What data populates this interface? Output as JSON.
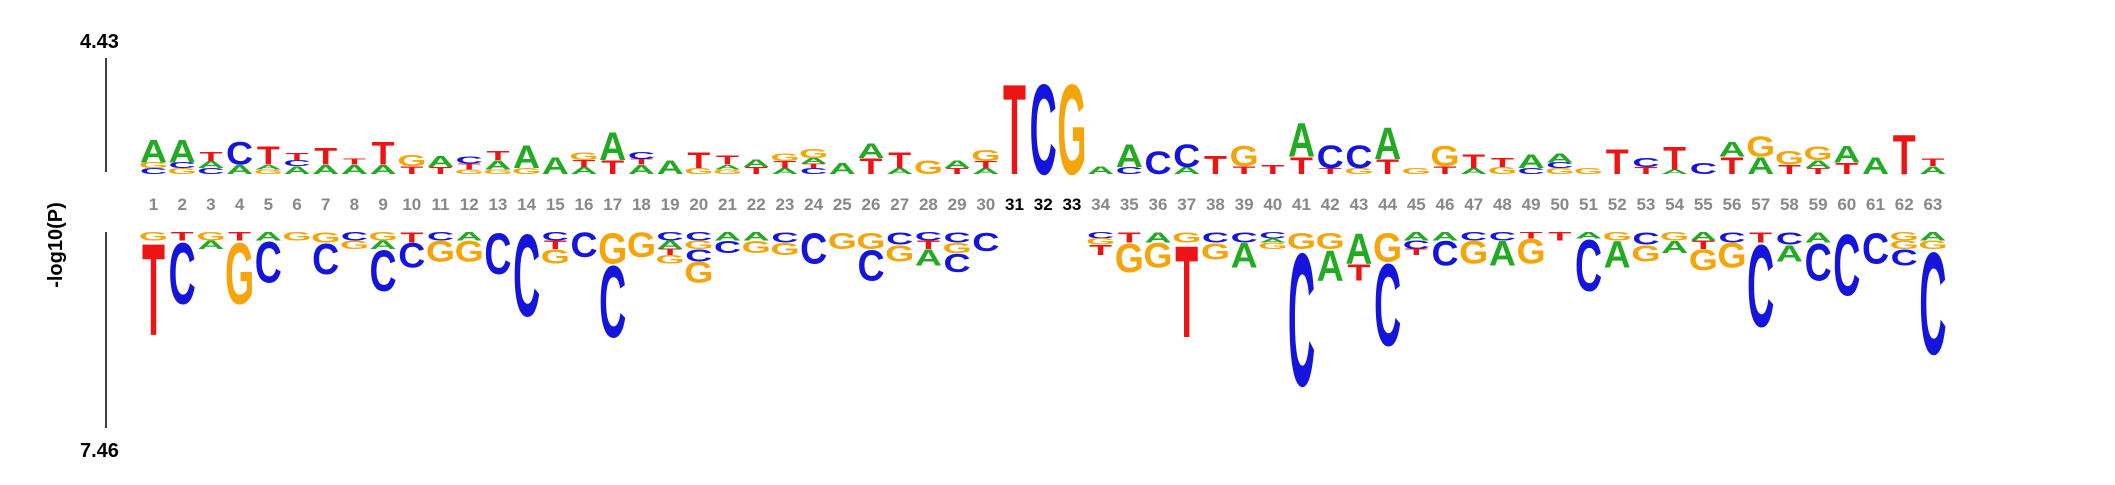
{
  "labels": {
    "top_value": "4.43",
    "bottom_value": "7.46",
    "y_axis_title": "-log10(P)"
  },
  "colors": {
    "A": "#22aa22",
    "C": "#1414dc",
    "G": "#f5a50a",
    "T": "#ee1414",
    "position_default": "#888888",
    "position_highlight": "#000000"
  },
  "positions": [
    "1",
    "2",
    "3",
    "4",
    "5",
    "6",
    "7",
    "8",
    "9",
    "10",
    "11",
    "12",
    "13",
    "14",
    "15",
    "16",
    "17",
    "18",
    "19",
    "20",
    "21",
    "22",
    "23",
    "24",
    "25",
    "26",
    "27",
    "28",
    "29",
    "30",
    "31",
    "32",
    "33",
    "34",
    "35",
    "36",
    "37",
    "38",
    "39",
    "40",
    "41",
    "42",
    "43",
    "44",
    "45",
    "46",
    "47",
    "48",
    "49",
    "50",
    "51",
    "52",
    "53",
    "54",
    "55",
    "56",
    "57",
    "58",
    "59",
    "60",
    "61",
    "62",
    "63"
  ],
  "highlighted_positions": [
    "31",
    "32",
    "33"
  ],
  "chart_data": {
    "type": "sequence-logo",
    "top_max": 4.43,
    "bottom_max": 7.46,
    "ylabel": "-log10(P)",
    "top": [
      [
        [
          "C",
          0.05
        ],
        [
          "G",
          0.05
        ],
        [
          "A",
          0.2
        ]
      ],
      [
        [
          "G",
          0.05
        ],
        [
          "C",
          0.05
        ],
        [
          "A",
          0.2
        ]
      ],
      [
        [
          "C",
          0.05
        ],
        [
          "A",
          0.06
        ],
        [
          "T",
          0.08
        ]
      ],
      [
        [
          "A",
          0.08
        ],
        [
          "C",
          0.2
        ]
      ],
      [
        [
          "G",
          0.04
        ],
        [
          "A",
          0.04
        ],
        [
          "T",
          0.16
        ]
      ],
      [
        [
          "A",
          0.07
        ],
        [
          "C",
          0.05
        ],
        [
          "T",
          0.06
        ]
      ],
      [
        [
          "A",
          0.08
        ],
        [
          "T",
          0.15
        ]
      ],
      [
        [
          "A",
          0.08
        ],
        [
          "T",
          0.05
        ]
      ],
      [
        [
          "A",
          0.08
        ],
        [
          "T",
          0.2
        ]
      ],
      [
        [
          "T",
          0.07
        ],
        [
          "G",
          0.1
        ]
      ],
      [
        [
          "T",
          0.06
        ],
        [
          "A",
          0.1
        ]
      ],
      [
        [
          "G",
          0.04
        ],
        [
          "T",
          0.05
        ],
        [
          "C",
          0.06
        ]
      ],
      [
        [
          "G",
          0.04
        ],
        [
          "A",
          0.08
        ],
        [
          "T",
          0.08
        ]
      ],
      [
        [
          "G",
          0.05
        ],
        [
          "A",
          0.2
        ]
      ],
      [
        [
          "A",
          0.15
        ]
      ],
      [
        [
          "A",
          0.06
        ],
        [
          "T",
          0.06
        ],
        [
          "G",
          0.07
        ]
      ],
      [
        [
          "T",
          0.12
        ],
        [
          "A",
          0.25
        ]
      ],
      [
        [
          "A",
          0.08
        ],
        [
          "T",
          0.05
        ],
        [
          "C",
          0.06
        ]
      ],
      [
        [
          "A",
          0.12
        ]
      ],
      [
        [
          "G",
          0.05
        ],
        [
          "T",
          0.14
        ]
      ],
      [
        [
          "G",
          0.04
        ],
        [
          "A",
          0.04
        ],
        [
          "T",
          0.08
        ]
      ],
      [
        [
          "T",
          0.06
        ],
        [
          "A",
          0.07
        ]
      ],
      [
        [
          "A",
          0.05
        ],
        [
          "T",
          0.06
        ],
        [
          "G",
          0.07
        ]
      ],
      [
        [
          "C",
          0.05
        ],
        [
          "T",
          0.04
        ],
        [
          "A",
          0.05
        ],
        [
          "G",
          0.08
        ]
      ],
      [
        [
          "A",
          0.1
        ]
      ],
      [
        [
          "T",
          0.14
        ],
        [
          "A",
          0.13
        ]
      ],
      [
        [
          "A",
          0.05
        ],
        [
          "T",
          0.14
        ]
      ],
      [
        [
          "G",
          0.12
        ]
      ],
      [
        [
          "T",
          0.05
        ],
        [
          "A",
          0.07
        ]
      ],
      [
        [
          "A",
          0.05
        ],
        [
          "T",
          0.06
        ],
        [
          "G",
          0.1
        ]
      ],
      [
        [
          "T",
          0.8
        ]
      ],
      [
        [
          "C",
          0.8
        ]
      ],
      [
        [
          "G",
          0.8
        ]
      ],
      [
        [
          "A",
          0.07
        ]
      ],
      [
        [
          "C",
          0.06
        ],
        [
          "A",
          0.2
        ]
      ],
      [
        [
          "C",
          0.2
        ]
      ],
      [
        [
          "A",
          0.06
        ],
        [
          "C",
          0.2
        ]
      ],
      [
        [
          "T",
          0.16
        ]
      ],
      [
        [
          "T",
          0.07
        ],
        [
          "G",
          0.18
        ]
      ],
      [
        [
          "T",
          0.08
        ]
      ],
      [
        [
          "T",
          0.15
        ],
        [
          "A",
          0.3
        ]
      ],
      [
        [
          "T",
          0.05
        ],
        [
          "C",
          0.2
        ]
      ],
      [
        [
          "G",
          0.05
        ],
        [
          "C",
          0.2
        ]
      ],
      [
        [
          "T",
          0.13
        ],
        [
          "A",
          0.28
        ]
      ],
      [
        [
          "G",
          0.05
        ]
      ],
      [
        [
          "T",
          0.07
        ],
        [
          "G",
          0.18
        ]
      ],
      [
        [
          "A",
          0.05
        ],
        [
          "T",
          0.12
        ]
      ],
      [
        [
          "G",
          0.06
        ],
        [
          "T",
          0.08
        ]
      ],
      [
        [
          "C",
          0.05
        ],
        [
          "A",
          0.12
        ]
      ],
      [
        [
          "G",
          0.05
        ],
        [
          "C",
          0.05
        ],
        [
          "A",
          0.08
        ]
      ],
      [
        [
          "G",
          0.05
        ]
      ],
      [
        [
          "T",
          0.22
        ]
      ],
      [
        [
          "T",
          0.06
        ],
        [
          "C",
          0.08
        ]
      ],
      [
        [
          "A",
          0.04
        ],
        [
          "T",
          0.2
        ]
      ],
      [
        [
          "C",
          0.1
        ]
      ],
      [
        [
          "T",
          0.15
        ],
        [
          "A",
          0.13
        ]
      ],
      [
        [
          "A",
          0.15
        ],
        [
          "G",
          0.18
        ]
      ],
      [
        [
          "T",
          0.08
        ],
        [
          "G",
          0.12
        ]
      ],
      [
        [
          "T",
          0.05
        ],
        [
          "A",
          0.07
        ],
        [
          "G",
          0.12
        ]
      ],
      [
        [
          "T",
          0.1
        ],
        [
          "A",
          0.15
        ]
      ],
      [
        [
          "A",
          0.15
        ]
      ],
      [
        [
          "T",
          0.35
        ]
      ],
      [
        [
          "A",
          0.07
        ],
        [
          "T",
          0.07
        ]
      ]
    ],
    "bottom": [
      [
        [
          "G",
          0.04
        ],
        [
          "T",
          0.45
        ]
      ],
      [
        [
          "T",
          0.04
        ],
        [
          "C",
          0.3
        ]
      ],
      [
        [
          "G",
          0.04
        ],
        [
          "A",
          0.04
        ]
      ],
      [
        [
          "T",
          0.04
        ],
        [
          "G",
          0.3
        ]
      ],
      [
        [
          "A",
          0.04
        ],
        [
          "C",
          0.2
        ]
      ],
      [
        [
          "G",
          0.04
        ]
      ],
      [
        [
          "G",
          0.05
        ],
        [
          "C",
          0.15
        ]
      ],
      [
        [
          "C",
          0.04
        ],
        [
          "G",
          0.04
        ]
      ],
      [
        [
          "G",
          0.04
        ],
        [
          "A",
          0.04
        ],
        [
          "C",
          0.2
        ]
      ],
      [
        [
          "T",
          0.05
        ],
        [
          "C",
          0.12
        ]
      ],
      [
        [
          "C",
          0.04
        ],
        [
          "G",
          0.1
        ]
      ],
      [
        [
          "A",
          0.04
        ],
        [
          "G",
          0.1
        ]
      ],
      [
        [
          "C",
          0.2
        ]
      ],
      [
        [
          "C",
          0.4
        ]
      ],
      [
        [
          "C",
          0.04
        ],
        [
          "T",
          0.04
        ],
        [
          "G",
          0.07
        ]
      ],
      [
        [
          "C",
          0.12
        ]
      ],
      [
        [
          "G",
          0.15
        ],
        [
          "C",
          0.35
        ]
      ],
      [
        [
          "G",
          0.12
        ]
      ],
      [
        [
          "C",
          0.04
        ],
        [
          "A",
          0.04
        ],
        [
          "T",
          0.03
        ],
        [
          "G",
          0.04
        ]
      ],
      [
        [
          "C",
          0.04
        ],
        [
          "G",
          0.04
        ],
        [
          "C",
          0.06
        ],
        [
          "G",
          0.1
        ]
      ],
      [
        [
          "A",
          0.04
        ],
        [
          "C",
          0.06
        ]
      ],
      [
        [
          "A",
          0.04
        ],
        [
          "G",
          0.06
        ]
      ],
      [
        [
          "C",
          0.05
        ],
        [
          "G",
          0.06
        ]
      ],
      [
        [
          "C",
          0.15
        ]
      ],
      [
        [
          "G",
          0.08
        ]
      ],
      [
        [
          "G",
          0.08
        ],
        [
          "C",
          0.15
        ]
      ],
      [
        [
          "C",
          0.06
        ],
        [
          "G",
          0.08
        ]
      ],
      [
        [
          "C",
          0.04
        ],
        [
          "T",
          0.04
        ],
        [
          "A",
          0.08
        ]
      ],
      [
        [
          "C",
          0.05
        ],
        [
          "G",
          0.05
        ],
        [
          "C",
          0.09
        ]
      ],
      [
        [
          "C",
          0.09
        ]
      ],
      [],
      [],
      [],
      [
        [
          "C",
          0.03
        ],
        [
          "G",
          0.03
        ],
        [
          "T",
          0.05
        ]
      ],
      [
        [
          "T",
          0.05
        ],
        [
          "G",
          0.14
        ]
      ],
      [
        [
          "A",
          0.05
        ],
        [
          "G",
          0.12
        ]
      ],
      [
        [
          "G",
          0.05
        ],
        [
          "T",
          0.45
        ]
      ],
      [
        [
          "C",
          0.05
        ],
        [
          "G",
          0.08
        ]
      ],
      [
        [
          "C",
          0.05
        ],
        [
          "A",
          0.12
        ]
      ],
      [
        [
          "C",
          0.03
        ],
        [
          "A",
          0.02
        ],
        [
          "G",
          0.03
        ]
      ],
      [
        [
          "G",
          0.08
        ],
        [
          "C",
          0.65
        ]
      ],
      [
        [
          "G",
          0.08
        ],
        [
          "A",
          0.15
        ]
      ],
      [
        [
          "A",
          0.15
        ],
        [
          "T",
          0.08
        ]
      ],
      [
        [
          "G",
          0.14
        ],
        [
          "C",
          0.4
        ]
      ],
      [
        [
          "A",
          0.04
        ],
        [
          "C",
          0.04
        ],
        [
          "T",
          0.03
        ]
      ],
      [
        [
          "A",
          0.04
        ],
        [
          "C",
          0.12
        ]
      ],
      [
        [
          "C",
          0.04
        ],
        [
          "G",
          0.11
        ]
      ],
      [
        [
          "C",
          0.04
        ],
        [
          "A",
          0.12
        ]
      ],
      [
        [
          "T",
          0.03
        ],
        [
          "G",
          0.12
        ]
      ],
      [
        [
          "T",
          0.04
        ]
      ],
      [
        [
          "A",
          0.03
        ],
        [
          "C",
          0.25
        ]
      ],
      [
        [
          "G",
          0.04
        ],
        [
          "A",
          0.13
        ]
      ],
      [
        [
          "C",
          0.06
        ],
        [
          "G",
          0.08
        ]
      ],
      [
        [
          "G",
          0.04
        ],
        [
          "A",
          0.06
        ]
      ],
      [
        [
          "A",
          0.04
        ],
        [
          "T",
          0.04
        ],
        [
          "G",
          0.1
        ]
      ],
      [
        [
          "C",
          0.05
        ],
        [
          "G",
          0.12
        ]
      ],
      [
        [
          "T",
          0.05
        ],
        [
          "C",
          0.4
        ]
      ],
      [
        [
          "C",
          0.06
        ],
        [
          "A",
          0.08
        ]
      ],
      [
        [
          "A",
          0.05
        ],
        [
          "C",
          0.18
        ]
      ],
      [
        [
          "C",
          0.3
        ]
      ],
      [
        [
          "C",
          0.15
        ]
      ],
      [
        [
          "G",
          0.04
        ],
        [
          "G",
          0.04
        ],
        [
          "C",
          0.08
        ]
      ],
      [
        [
          "A",
          0.04
        ],
        [
          "G",
          0.04
        ],
        [
          "C",
          0.5
        ]
      ]
    ]
  }
}
